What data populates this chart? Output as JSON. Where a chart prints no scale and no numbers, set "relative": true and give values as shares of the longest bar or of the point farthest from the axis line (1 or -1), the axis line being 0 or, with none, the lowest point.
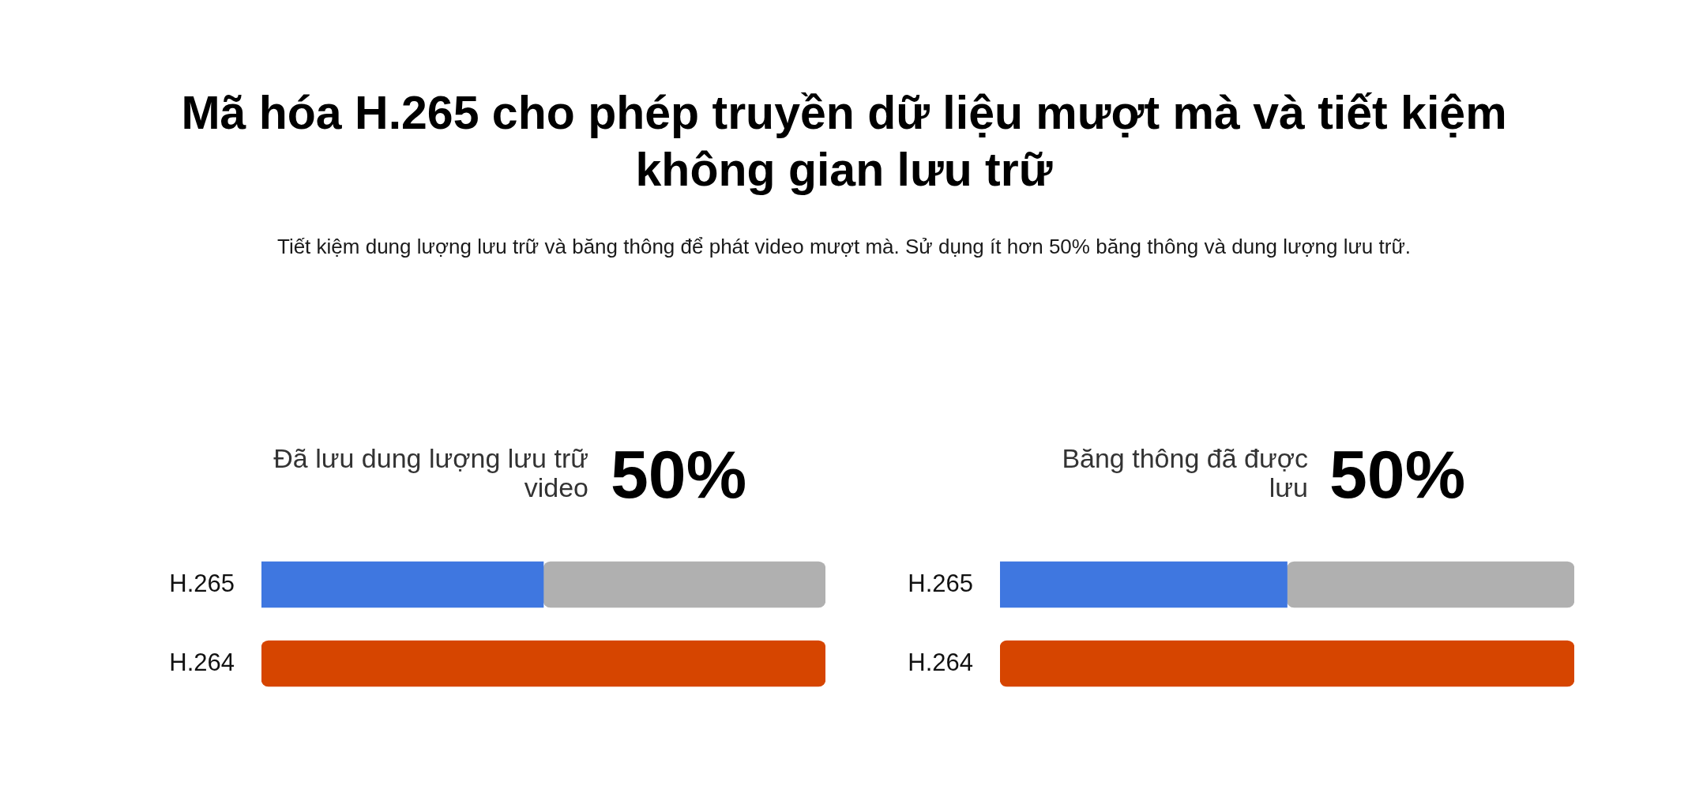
{
  "chart_data": [
    {
      "type": "other",
      "title": "Mã hóa H.265 cho phép truyền dữ liệu mượt mà và tiết kiệm không gian lưu trữ",
      "subtitle": "Tiết kiệm dung lượng lưu trữ và băng thông để phát video mượt mà. Sử dụng ít hơn 50% băng thông và dung lượng lưu trữ."
    },
    {
      "type": "bar",
      "orientation": "horizontal",
      "stacked": true,
      "relative": true,
      "title": "Đã lưu dung lượng lưu trữ video",
      "annotations": [
        "50%"
      ],
      "categories": [
        "H.265",
        "H.264"
      ],
      "series": [
        {
          "colors": [
            "#3f77e0",
            "#d64500"
          ],
          "values": [
            0.5,
            1
          ]
        },
        {
          "color": "#b0b0b0",
          "values": [
            0.5,
            null
          ]
        }
      ]
    },
    {
      "type": "bar",
      "orientation": "horizontal",
      "stacked": true,
      "relative": true,
      "title": "Băng thông đã được lưu",
      "annotations": [
        "50%"
      ],
      "categories": [
        "H.265",
        "H.264"
      ],
      "series": [
        {
          "colors": [
            "#3f77e0",
            "#d64500"
          ],
          "values": [
            0.5,
            1
          ]
        },
        {
          "color": "#b0b0b0",
          "values": [
            0.5,
            null
          ]
        }
      ]
    }
  ]
}
